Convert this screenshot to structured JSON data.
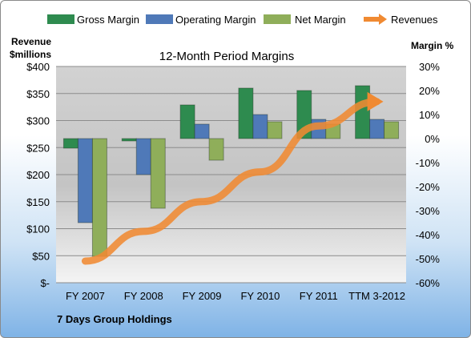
{
  "chart_data": {
    "type": "bar",
    "title": "12-Month Period Margins",
    "company": "7 Days Group Holdings",
    "categories": [
      "FY 2007",
      "FY 2008",
      "FY 2009",
      "FY 2010",
      "FY 2011",
      "TTM 3-2012"
    ],
    "series": [
      {
        "name": "Gross Margin",
        "axis": "right",
        "values": [
          -4,
          -1,
          14,
          21,
          20,
          22
        ]
      },
      {
        "name": "Operating Margin",
        "axis": "right",
        "values": [
          -35,
          -15,
          6,
          10,
          8,
          8
        ]
      },
      {
        "name": "Net Margin",
        "axis": "right",
        "values": [
          -49,
          -29,
          -9,
          7,
          6,
          7
        ]
      },
      {
        "name": "Revenues",
        "type": "line",
        "axis": "left",
        "values": [
          40,
          95,
          150,
          205,
          290,
          335
        ]
      }
    ],
    "left_axis": {
      "label_line1": "Revenue",
      "label_line2": "$millions",
      "ylim": [
        0,
        400
      ],
      "ticks": [
        "$400",
        "$350",
        "$300",
        "$250",
        "$200",
        "$150",
        "$100",
        "$50",
        "$-"
      ]
    },
    "right_axis": {
      "label": "Margin %",
      "ylim": [
        -60,
        30
      ],
      "ticks": [
        "30%",
        "20%",
        "10%",
        "0%",
        "-10%",
        "-20%",
        "-30%",
        "-40%",
        "-50%",
        "-60%"
      ]
    },
    "legend_position": "top",
    "grid": true,
    "colors": {
      "Gross Margin": "#2e8b4f",
      "Operating Margin": "#4f79b8",
      "Net Margin": "#8fae5a",
      "Revenues": "#f08a32"
    }
  }
}
